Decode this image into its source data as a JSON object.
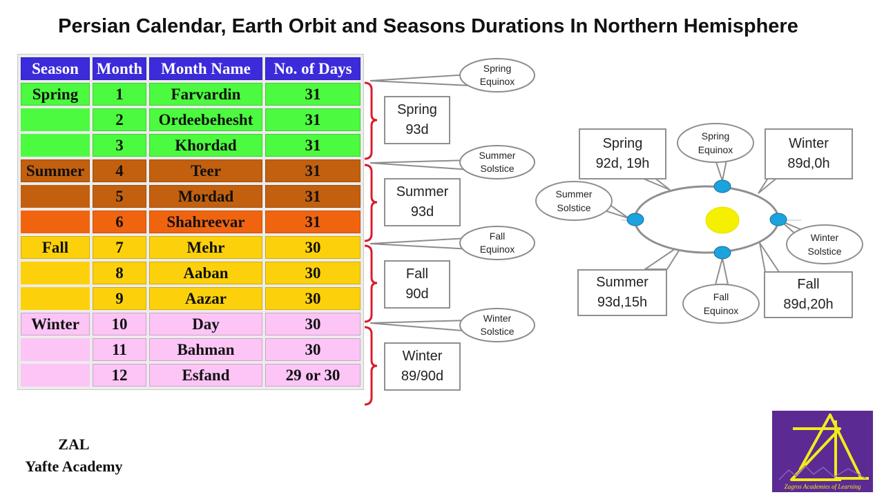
{
  "title": "Persian Calendar, Earth Orbit and Seasons Durations In Northern Hemisphere",
  "table": {
    "headers": [
      "Season",
      "Month",
      "Month Name",
      "No. of Days"
    ],
    "rows": [
      {
        "season": "Spring",
        "month": "1",
        "name": "Farvardin",
        "days": "31",
        "color": "#4cfa3f"
      },
      {
        "season": "",
        "month": "2",
        "name": "Ordeebehesht",
        "days": "31",
        "color": "#4cfa3f"
      },
      {
        "season": "",
        "month": "3",
        "name": "Khordad",
        "days": "31",
        "color": "#4cfa3f"
      },
      {
        "season": "Summer",
        "month": "4",
        "name": "Teer",
        "days": "31",
        "color": "#c2600f"
      },
      {
        "season": "",
        "month": "5",
        "name": "Mordad",
        "days": "31",
        "color": "#c2600f"
      },
      {
        "season": "",
        "month": "6",
        "name": "Shahreevar",
        "days": "31",
        "color": "#f06410"
      },
      {
        "season": "Fall",
        "month": "7",
        "name": "Mehr",
        "days": "30",
        "color": "#fcd10b"
      },
      {
        "season": "",
        "month": "8",
        "name": "Aaban",
        "days": "30",
        "color": "#fcd10b"
      },
      {
        "season": "",
        "month": "9",
        "name": "Aazar",
        "days": "30",
        "color": "#fcd10b"
      },
      {
        "season": "Winter",
        "month": "10",
        "name": "Day",
        "days": "30",
        "color": "#fcc5f6"
      },
      {
        "season": "",
        "month": "11",
        "name": "Bahman",
        "days": "30",
        "color": "#fcc5f6"
      },
      {
        "season": "",
        "month": "12",
        "name": "Esfand",
        "days": "29 or 30",
        "color": "#fcc5f6"
      }
    ],
    "header_color": "#3b2bdb"
  },
  "equinox_callouts": [
    {
      "line1": "Spring",
      "line2": "Equinox"
    },
    {
      "line1": "Summer",
      "line2": "Solstice"
    },
    {
      "line1": "Fall",
      "line2": "Equinox"
    },
    {
      "line1": "Winter",
      "line2": "Solstice"
    }
  ],
  "season_durations": [
    {
      "line1": "Spring",
      "line2": "93d"
    },
    {
      "line1": "Summer",
      "line2": "93d"
    },
    {
      "line1": "Fall",
      "line2": "90d"
    },
    {
      "line1": "Winter",
      "line2": "89/90d"
    }
  ],
  "orbit": {
    "durations": {
      "spring": {
        "line1": "Spring",
        "line2": "92d, 19h"
      },
      "winter": {
        "line1": "Winter",
        "line2": "89d,0h"
      },
      "summer": {
        "line1": "Summer",
        "line2": "93d,15h"
      },
      "fall": {
        "line1": "Fall",
        "line2": "89d,20h"
      }
    },
    "points": {
      "spring_equinox": {
        "line1": "Spring",
        "line2": "Equinox"
      },
      "summer_solstice": {
        "line1": "Summer",
        "line2": "Solstice"
      },
      "winter_solstice": {
        "line1": "Winter",
        "line2": "Solstice"
      },
      "fall_equinox": {
        "line1": "Fall",
        "line2": "Equinox"
      }
    },
    "sun_color": "#f5f000",
    "earth_color": "#1aa3dc"
  },
  "bracket_color": "#d81c2c",
  "credit": {
    "line1": "ZAL",
    "line2": "Yafte Academy"
  },
  "logo": {
    "text": "Zagros Academies of Learning",
    "background": "#5b2a92",
    "letter_color": "#f2ec1a"
  }
}
